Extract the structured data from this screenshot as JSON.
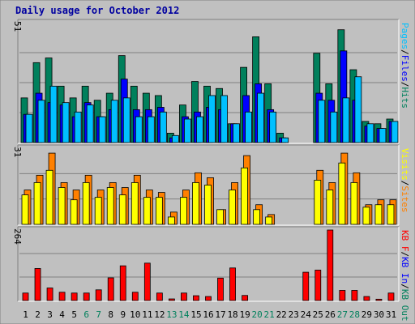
{
  "chart_data": {
    "type": "bar",
    "title": "Daily usage for October 2012",
    "days": [
      1,
      2,
      3,
      4,
      5,
      6,
      7,
      8,
      9,
      10,
      11,
      12,
      13,
      14,
      15,
      16,
      17,
      18,
      19,
      20,
      21,
      22,
      23,
      24,
      25,
      26,
      27,
      28,
      29,
      30,
      31
    ],
    "weekend_days": [
      6,
      7,
      13,
      14,
      20,
      21,
      27,
      28
    ],
    "weekend_label_color": "#00805c",
    "weekday_label_color": "#000000",
    "panels": [
      {
        "name": "hits-files-pages",
        "max_label": "51",
        "ylim": [
          0,
          51
        ],
        "legend": [
          {
            "text": "Pages",
            "color": "#00c0ff"
          },
          {
            "text": "/",
            "color": "#000000"
          },
          {
            "text": "Files",
            "color": "#0000ff"
          },
          {
            "text": "/",
            "color": "#000000"
          },
          {
            "text": "Hits",
            "color": "#00805c"
          }
        ],
        "series": [
          {
            "name": "Hits",
            "color": "#00805c",
            "values": [
              19,
              34,
              36,
              24,
              19,
              24,
              18,
              21,
              37,
              24,
              21,
              20,
              4,
              16,
              26,
              24,
              23,
              8,
              32,
              45,
              25,
              4,
              0,
              0,
              38,
              25,
              48,
              31,
              9,
              8,
              10
            ]
          },
          {
            "name": "Files",
            "color": "#0000ff",
            "values": [
              12,
              21,
              17,
              16,
              11,
              17,
              11,
              14,
              27,
              14,
              14,
              15,
              2,
              11,
              13,
              15,
              14,
              8,
              20,
              25,
              14,
              2,
              0,
              0,
              21,
              18,
              39,
              18,
              7,
              6,
              9
            ]
          },
          {
            "name": "Pages",
            "color": "#00c0ff",
            "values": [
              12,
              18,
              24,
              17,
              13,
              16,
              11,
              18,
              19,
              11,
              11,
              13,
              3,
              10,
              11,
              20,
              20,
              8,
              13,
              21,
              13,
              2,
              0,
              0,
              18,
              13,
              19,
              28,
              8,
              6,
              9
            ]
          }
        ]
      },
      {
        "name": "visits-sites",
        "max_label": "31",
        "ylim": [
          0,
          31
        ],
        "legend": [
          {
            "text": "Visits",
            "color": "#ffff00"
          },
          {
            "text": "/",
            "color": "#000000"
          },
          {
            "text": "Sites",
            "color": "#ff8000"
          }
        ],
        "series": [
          {
            "name": "Sites",
            "color": "#ff8000",
            "values": [
              14,
              20,
              29,
              17,
              14,
              20,
              14,
              17,
              15,
              20,
              14,
              13,
              5,
              14,
              21,
              19,
              6,
              17,
              28,
              8,
              4,
              0,
              0,
              0,
              22,
              17,
              29,
              21,
              8,
              10,
              10
            ]
          },
          {
            "name": "Visits",
            "color": "#ffff00",
            "values": [
              12,
              17,
              22,
              15,
              10,
              17,
              11,
              15,
              12,
              17,
              11,
              11,
              3,
              11,
              17,
              16,
              6,
              14,
              23,
              6,
              3,
              0,
              0,
              0,
              18,
              14,
              25,
              17,
              7,
              8,
              8
            ]
          }
        ]
      },
      {
        "name": "kbytes",
        "max_label": "264",
        "ylim": [
          0,
          264
        ],
        "legend": [
          {
            "text": "KB F",
            "color": "#ff0000"
          },
          {
            "text": "/",
            "color": "#000000"
          },
          {
            "text": "KB In",
            "color": "#0000ff"
          },
          {
            "text": "/",
            "color": "#000000"
          },
          {
            "text": "KB Out",
            "color": "#00805c"
          }
        ],
        "series": [
          {
            "name": "KB F",
            "color": "#ff0000",
            "values": [
              28,
              120,
              47,
              31,
              28,
              28,
              40,
              85,
              130,
              31,
              140,
              28,
              6,
              28,
              18,
              15,
              84,
              122,
              19,
              0,
              0,
              0,
              0,
              106,
              114,
              264,
              38,
              38,
              15,
              5,
              28
            ]
          }
        ]
      }
    ]
  }
}
